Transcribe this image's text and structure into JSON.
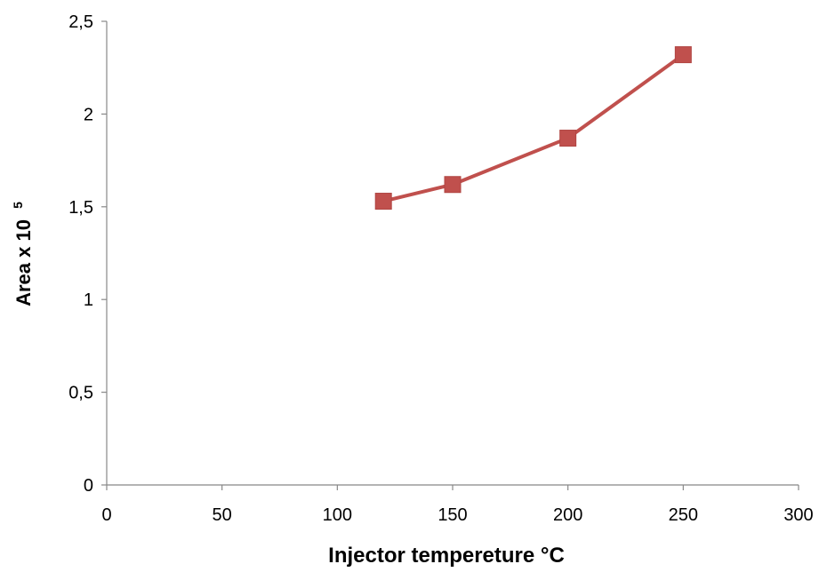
{
  "chart_data": {
    "type": "line",
    "title": "",
    "xlabel": "Injector tempereture °C",
    "ylabel": "Area x 10",
    "ylabel_superscript": "5",
    "xlim": [
      0,
      300
    ],
    "ylim": [
      0,
      2.5
    ],
    "x_ticks": [
      "0",
      "50",
      "100",
      "150",
      "200",
      "250",
      "300"
    ],
    "y_ticks": [
      "0",
      "0,5",
      "1",
      "1,5",
      "2",
      "2,5"
    ],
    "grid": false,
    "series": [
      {
        "name": "",
        "color": "#c0504d",
        "marker": "square",
        "points": [
          {
            "x": 120,
            "y": 1.53
          },
          {
            "x": 150,
            "y": 1.62
          },
          {
            "x": 200,
            "y": 1.87
          },
          {
            "x": 250,
            "y": 2.32
          }
        ]
      }
    ]
  }
}
